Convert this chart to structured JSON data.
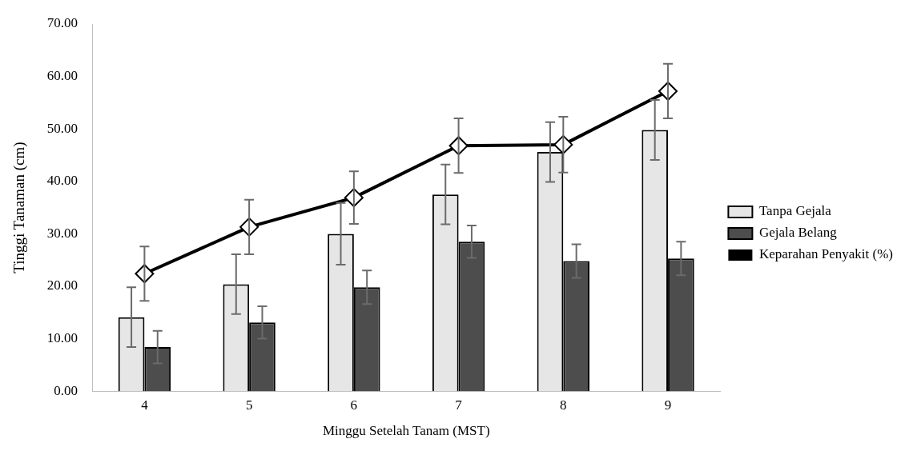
{
  "chart_data": {
    "type": "bar",
    "xlabel": "Minggu Setelah Tanam (MST)",
    "ylabel": "Tinggi Tanaman (cm)",
    "categories": [
      "4",
      "5",
      "6",
      "7",
      "8",
      "9"
    ],
    "series": [
      {
        "name": "Tanpa Gejala",
        "color": "#e6e6e6",
        "values": [
          14.1,
          20.4,
          30.0,
          37.5,
          45.6,
          49.8
        ],
        "errors": [
          5.7,
          5.7,
          5.9,
          5.7,
          5.7,
          5.7
        ]
      },
      {
        "name": "Gejala Belang",
        "color": "#4d4d4d",
        "values": [
          8.4,
          13.1,
          19.8,
          28.5,
          24.8,
          25.3
        ],
        "errors": [
          3.1,
          3.1,
          3.2,
          3.1,
          3.2,
          3.2
        ]
      },
      {
        "name": "Keparahan Penyakit (%)",
        "type": "line",
        "color": "#000000",
        "marker": "diamond",
        "values": [
          22.4,
          31.3,
          36.9,
          46.8,
          47.0,
          57.2
        ],
        "errors": [
          5.2,
          5.2,
          5.0,
          5.2,
          5.3,
          5.2
        ]
      }
    ],
    "ylim": [
      0,
      70
    ],
    "yticks": [
      {
        "value": 0,
        "label": "0.00"
      },
      {
        "value": 10,
        "label": "10.00"
      },
      {
        "value": 20,
        "label": "20.00"
      },
      {
        "value": 30,
        "label": "30.00"
      },
      {
        "value": 40,
        "label": "40.00"
      },
      {
        "value": 50,
        "label": "50.00"
      },
      {
        "value": 60,
        "label": "60.00"
      },
      {
        "value": 70,
        "label": "70.00"
      }
    ],
    "grid": false,
    "legend": "right"
  }
}
